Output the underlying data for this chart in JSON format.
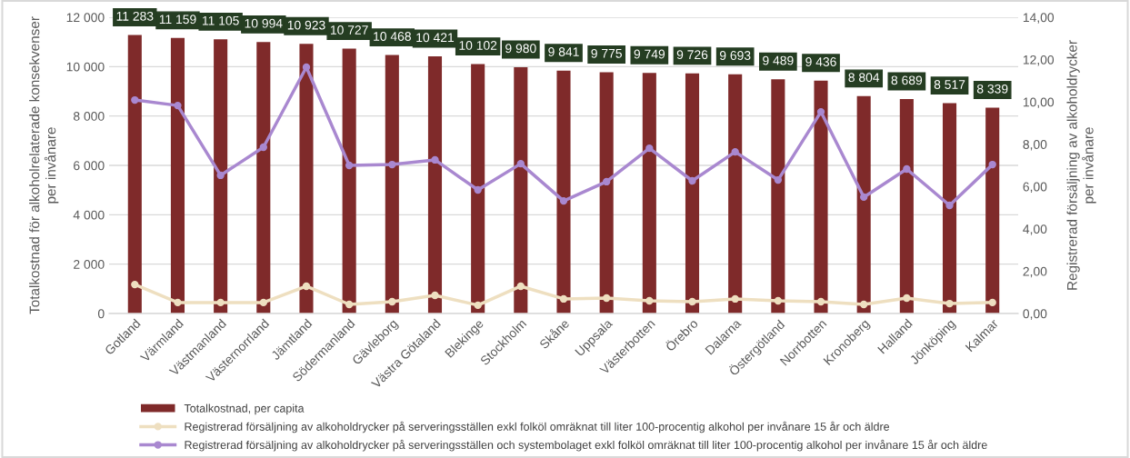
{
  "chart_data": {
    "type": "bar",
    "categories": [
      "Gotland",
      "Värmland",
      "Västmanland",
      "Västernorrland",
      "Jämtland",
      "Södermanland",
      "Gävleborg",
      "Västra Götaland",
      "Blekinge",
      "Stockholm",
      "Skåne",
      "Uppsala",
      "Västerbotten",
      "Örebro",
      "Dalarna",
      "Östergötland",
      "Norrbotten",
      "Kronoberg",
      "Halland",
      "Jönköping",
      "Kalmar"
    ],
    "ylabel": "Totalkostnad för alkoholrelaterade konsekvenser\nper invånare",
    "y2label": "Registrerad försäljning av alkoholdrycker\nper invånare",
    "ylim": [
      0,
      12000
    ],
    "yticks": [
      0,
      {
        "value": 2000,
        "label": "2 000"
      },
      {
        "value": 4000,
        "label": "4 000"
      },
      {
        "value": 6000,
        "label": "6 000"
      },
      {
        "value": 8000,
        "label": "8 000"
      },
      {
        "value": 10000,
        "label": "10 000"
      },
      {
        "value": 12000,
        "label": "12 000"
      }
    ],
    "y2lim": [
      0,
      14
    ],
    "y2ticks": [
      {
        "value": 0,
        "label": "0,00"
      },
      {
        "value": 2,
        "label": "2,00"
      },
      {
        "value": 4,
        "label": "4,00"
      },
      {
        "value": 6,
        "label": "6,00"
      },
      {
        "value": 8,
        "label": "8,00"
      },
      {
        "value": 10,
        "label": "10,00"
      },
      {
        "value": 12,
        "label": "12,00"
      },
      {
        "value": 14,
        "label": "14,00"
      }
    ],
    "grid": "y",
    "legend": "bottom",
    "series": [
      {
        "name": "Totalkostnad, per capita",
        "color": "#7f2a2a",
        "values": [
          11283,
          11159,
          11105,
          10994,
          10923,
          10727,
          10468,
          10421,
          10102,
          9980,
          9841,
          9775,
          9749,
          9726,
          9693,
          9489,
          9436,
          8804,
          8689,
          8517,
          8339
        ],
        "value_labels": [
          "11 283",
          "11 159",
          "11 105",
          "10 994",
          "10 923",
          "10 727",
          "10 468",
          "10 421",
          "10 102",
          "9 980",
          "9 841",
          "9 775",
          "9 749",
          "9 726",
          "9 693",
          "9 489",
          "9 436",
          "8 804",
          "8 689",
          "8 517",
          "8 339"
        ]
      },
      {
        "name": "Registrerad försäljning av alkoholdrycker på serveringsställen exkl folköl omräknat till liter 100-procentig alkohol per invånare 15 år och äldre",
        "type": "line",
        "axis": "y2",
        "marker": "circle",
        "color": "#eedfc0",
        "values": [
          1.37,
          0.52,
          0.52,
          0.52,
          1.29,
          0.43,
          0.56,
          0.86,
          0.39,
          1.29,
          0.69,
          0.73,
          0.6,
          0.56,
          0.69,
          0.6,
          0.56,
          0.43,
          0.73,
          0.47,
          0.52
        ]
      },
      {
        "name": "Registrerad försäljning av alkoholdrycker på serveringsställen och systembolaget exkl folköl omräknat till liter 100-procentig alkohol per invånare 15 år och äldre",
        "type": "line",
        "axis": "y2",
        "marker": "circle",
        "color": "#a988d0",
        "values": [
          10.09,
          9.83,
          6.53,
          7.86,
          11.64,
          7.0,
          7.04,
          7.26,
          5.84,
          7.08,
          5.32,
          6.23,
          7.81,
          6.27,
          7.64,
          6.31,
          9.53,
          5.5,
          6.83,
          5.11,
          7.04
        ]
      }
    ]
  }
}
